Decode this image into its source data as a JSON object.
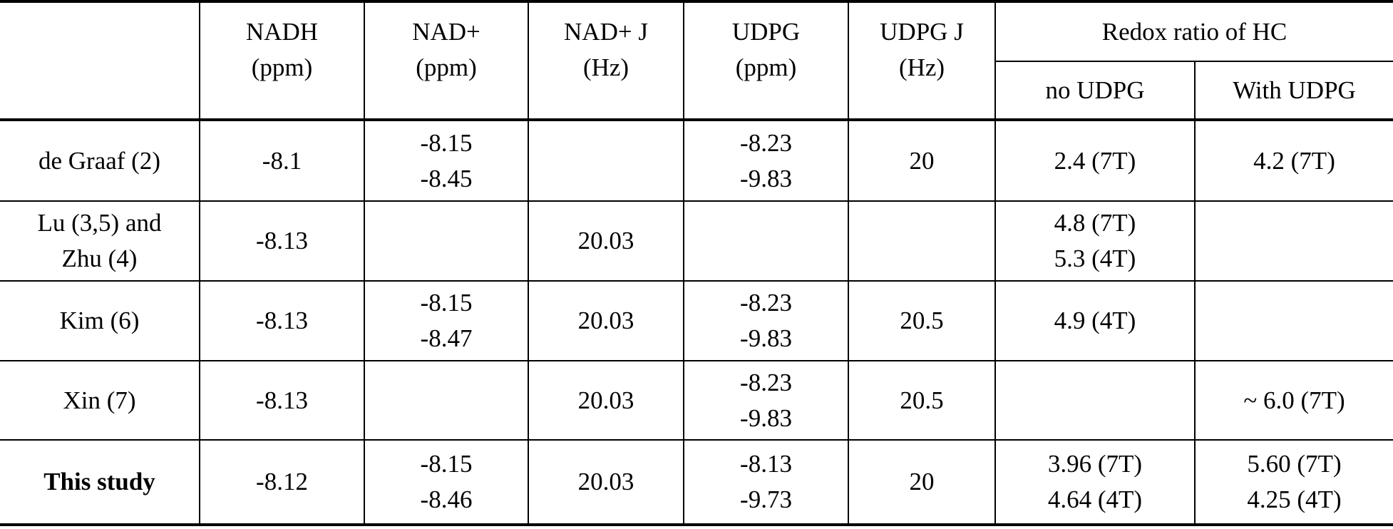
{
  "table": {
    "header": {
      "columns": [
        [
          "NADH",
          "(ppm)"
        ],
        [
          "NAD+",
          "(ppm)"
        ],
        [
          "NAD+ J",
          "(Hz)"
        ],
        [
          "UDPG",
          "(ppm)"
        ],
        [
          "UDPG J",
          "(Hz)"
        ]
      ],
      "group": "Redox ratio of HC",
      "subcolumns": [
        "no UDPG",
        "With UDPG"
      ]
    },
    "rows": [
      {
        "label": [
          "de Graaf (2)"
        ],
        "cells": [
          [
            "-8.1"
          ],
          [
            "-8.15",
            "-8.45"
          ],
          null,
          [
            "-8.23",
            "-9.83"
          ],
          [
            "20"
          ],
          [
            "2.4 (7T)"
          ],
          [
            "4.2 (7T)"
          ]
        ]
      },
      {
        "label": [
          "Lu (3,5) and",
          "Zhu (4)"
        ],
        "cells": [
          [
            "-8.13"
          ],
          null,
          [
            "20.03"
          ],
          null,
          null,
          [
            "4.8 (7T)",
            "5.3 (4T)"
          ],
          null
        ]
      },
      {
        "label": [
          "Kim (6)"
        ],
        "cells": [
          [
            "-8.13"
          ],
          [
            "-8.15",
            "-8.47"
          ],
          [
            "20.03"
          ],
          [
            "-8.23",
            "-9.83"
          ],
          [
            "20.5"
          ],
          [
            "4.9 (4T)"
          ],
          null
        ]
      },
      {
        "label": [
          "Xin (7)"
        ],
        "cells": [
          [
            "-8.13"
          ],
          null,
          [
            "20.03"
          ],
          [
            "-8.23",
            "-9.83"
          ],
          [
            "20.5"
          ],
          null,
          [
            "~ 6.0 (7T)"
          ]
        ]
      },
      {
        "label": [
          "This study"
        ],
        "cells": [
          [
            "-8.12"
          ],
          [
            "-8.15",
            "-8.46"
          ],
          [
            "20.03"
          ],
          [
            "-8.13",
            "-9.73"
          ],
          [
            "20"
          ],
          [
            "3.96 (7T)",
            "4.64 (4T)"
          ],
          [
            "5.60 (7T)",
            "4.25 (4T)"
          ]
        ]
      }
    ]
  }
}
